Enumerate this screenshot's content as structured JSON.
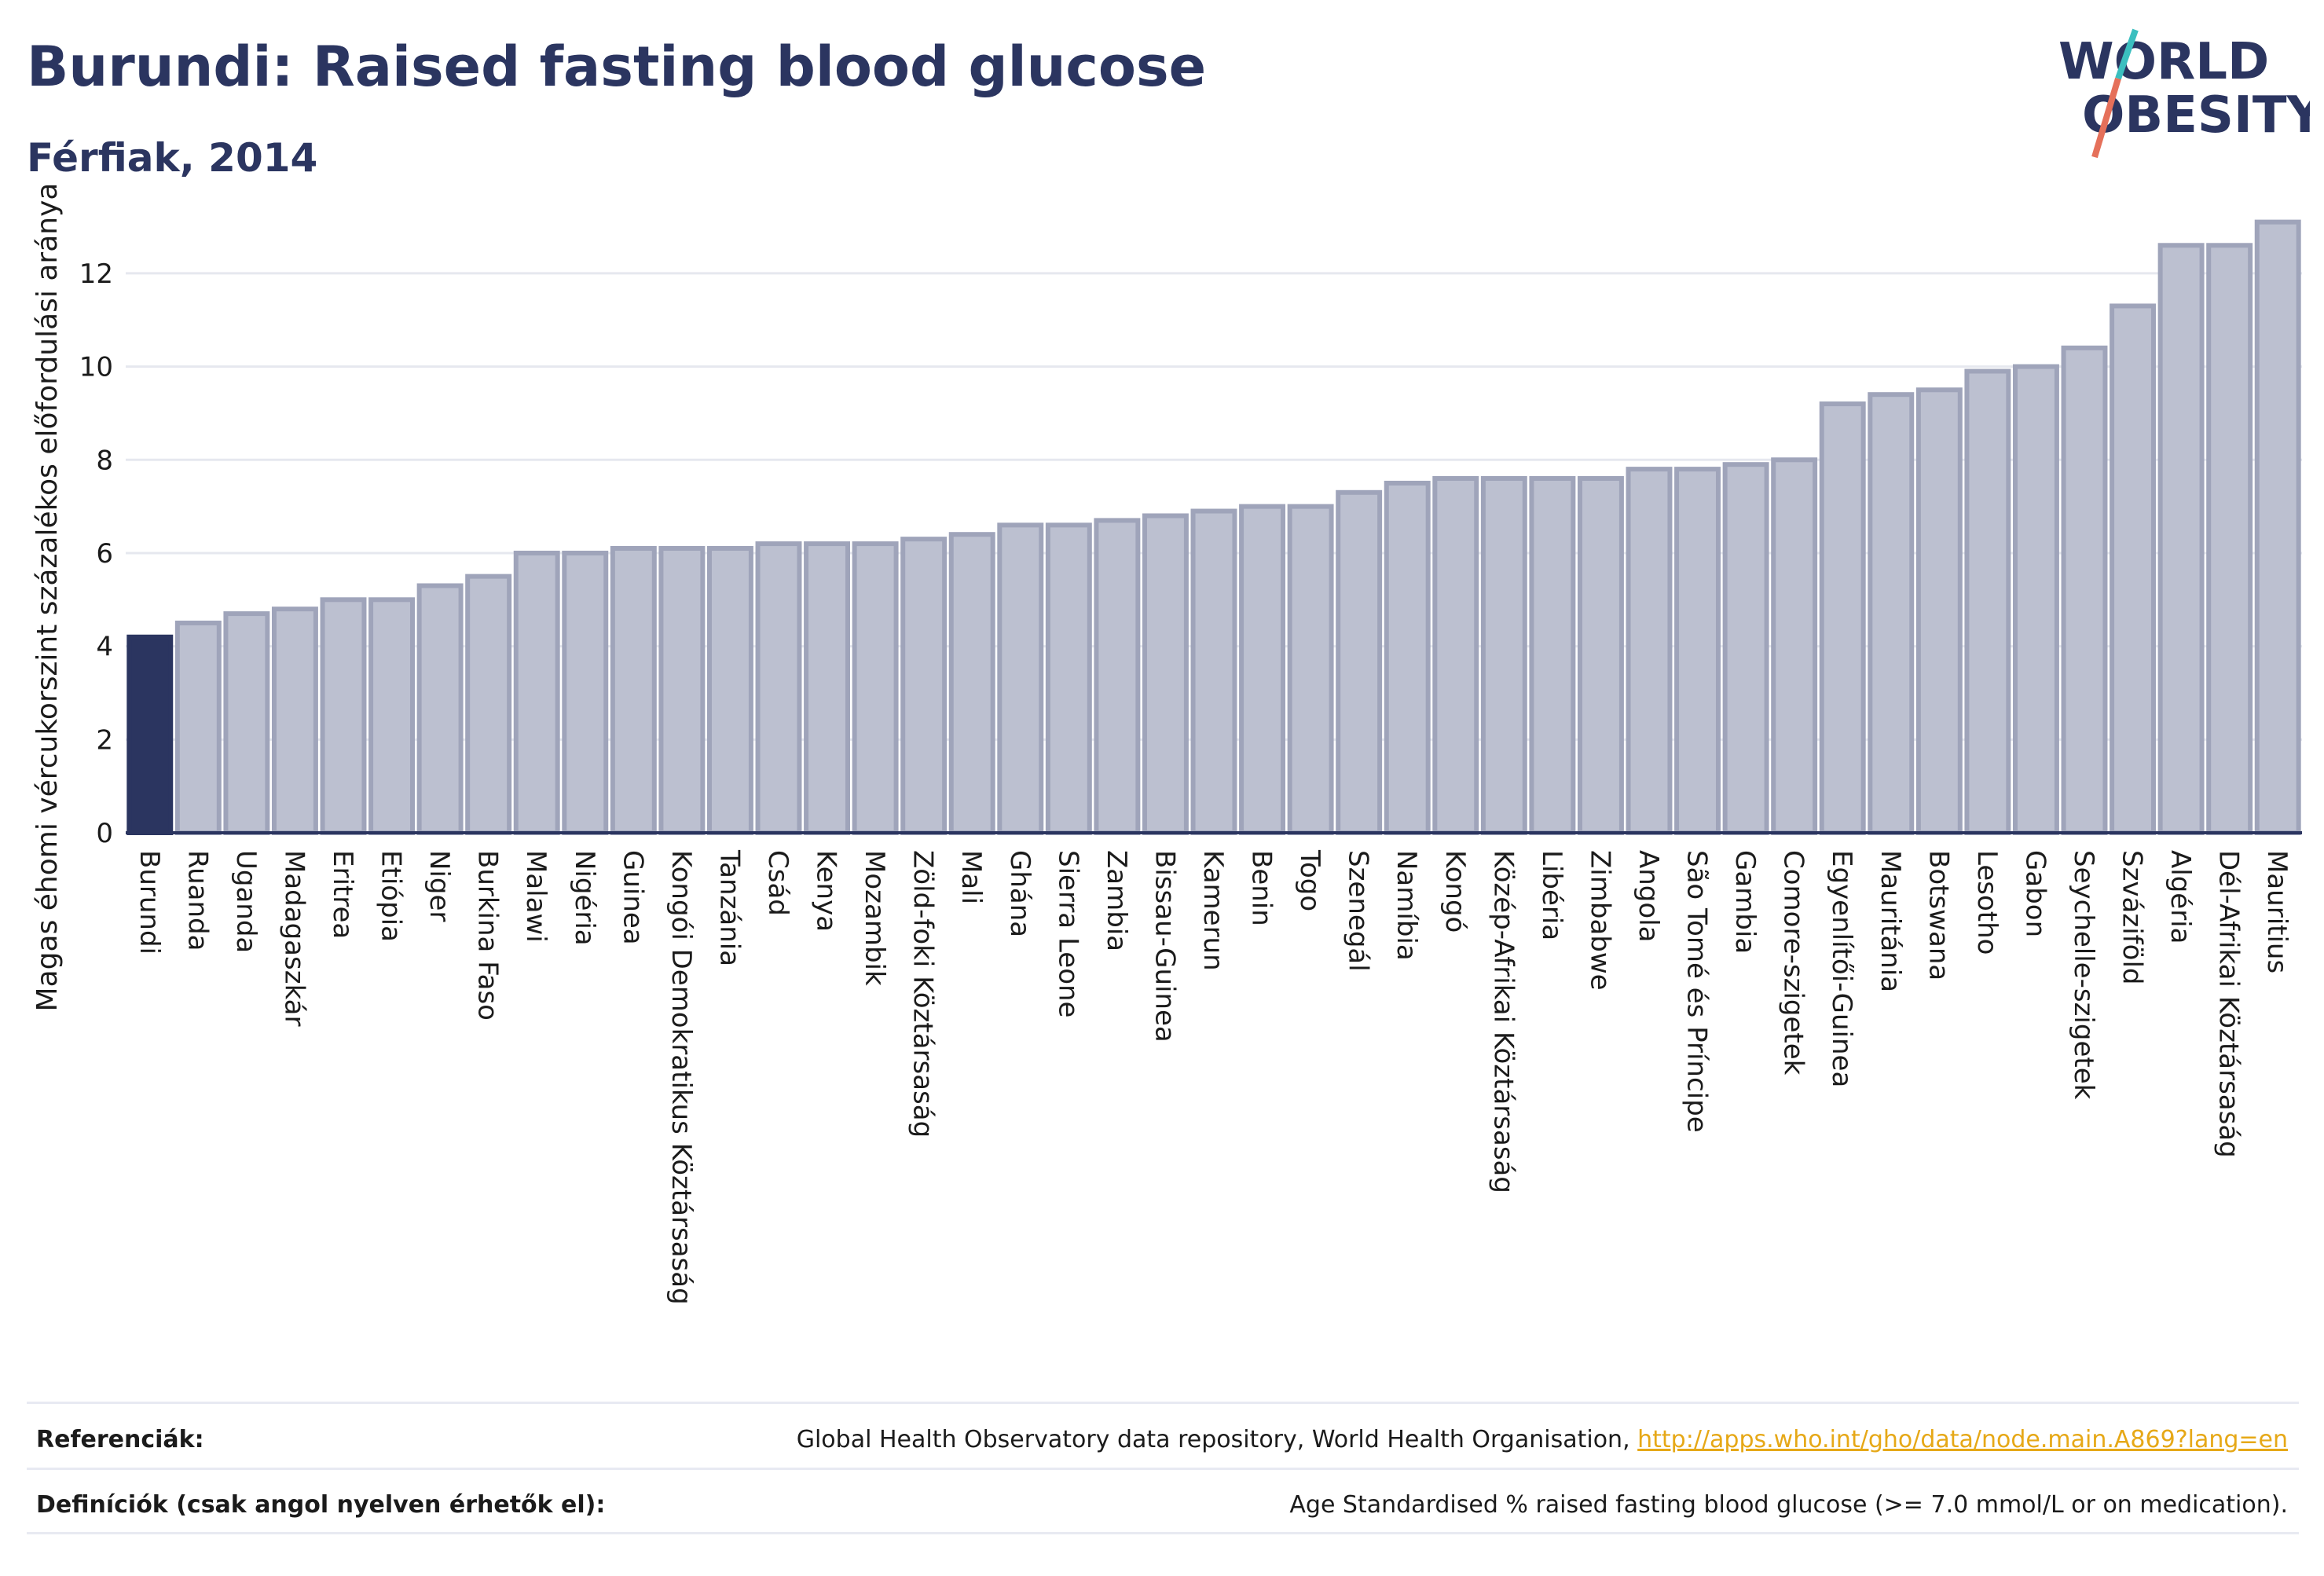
{
  "header": {
    "title": "Burundi: Raised fasting blood glucose",
    "subtitle": "Férfiak, 2014"
  },
  "logo": {
    "line1": "WORLD",
    "line2": "OBESITY",
    "accent": "#3bbfbf",
    "accent2": "#e5705a"
  },
  "colors": {
    "highlight": "#2b3560",
    "bar_fill": "#bcc0d0",
    "bar_stroke": "#9fa4ba",
    "grid": "#e6e8ef",
    "axis": "#2b3560"
  },
  "chart_data": {
    "type": "bar",
    "ylabel": "Magas éhomi vércukorszint százalékos előfordulási aránya",
    "ylim": [
      0,
      13.7
    ],
    "yticks": [
      0,
      2,
      4,
      6,
      8,
      10,
      12
    ],
    "highlight_index": 0,
    "categories": [
      "Burundi",
      "Ruanda",
      "Uganda",
      "Madagaszkár",
      "Eritrea",
      "Etiópia",
      "Niger",
      "Burkina Faso",
      "Malawi",
      "Nigéria",
      "Guinea",
      "Kongói Demokratikus Köztársaság",
      "Tanzánia",
      "Csád",
      "Kenya",
      "Mozambik",
      "Zöld-foki Köztársaság",
      "Mali",
      "Ghána",
      "Sierra Leone",
      "Zambia",
      "Bissau-Guinea",
      "Kamerun",
      "Benin",
      "Togo",
      "Szenegál",
      "Namíbia",
      "Kongó",
      "Közép-Afrikai Köztársaság",
      "Libéria",
      "Zimbabwe",
      "Angola",
      "São Tomé és Príncipe",
      "Gambia",
      "Comore-szigetek",
      "Egyenlítői-Guinea",
      "Mauritánia",
      "Botswana",
      "Lesotho",
      "Gabon",
      "Seychelle-szigetek",
      "Szváziföld",
      "Algéria",
      "Dél-Afrikai Köztársaság",
      "Mauritius"
    ],
    "values": [
      4.2,
      4.5,
      4.7,
      4.8,
      5.0,
      5.0,
      5.3,
      5.5,
      6.0,
      6.0,
      6.1,
      6.1,
      6.1,
      6.2,
      6.2,
      6.2,
      6.3,
      6.4,
      6.6,
      6.6,
      6.7,
      6.8,
      6.9,
      7.0,
      7.0,
      7.3,
      7.5,
      7.6,
      7.6,
      7.6,
      7.6,
      7.8,
      7.8,
      7.9,
      8.0,
      9.2,
      9.4,
      9.5,
      9.9,
      10.0,
      10.4,
      11.3,
      12.6,
      12.6,
      13.1
    ]
  },
  "footer": {
    "references_label": "Referenciák:",
    "references_text": "Global Health Observatory data repository, World Health Organisation, ",
    "references_link": "http://apps.who.int/gho/data/node.main.A869?lang=en",
    "definitions_label": "Definíciók (csak angol nyelven érhetők el):",
    "definitions_text": "Age Standardised % raised fasting blood glucose (>= 7.0 mmol/L or on medication)."
  }
}
